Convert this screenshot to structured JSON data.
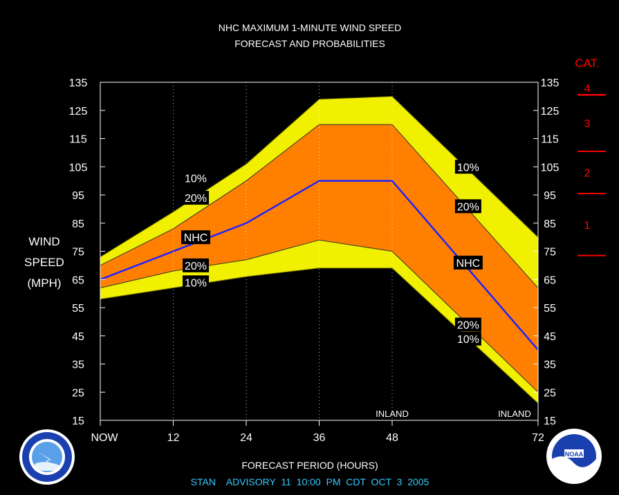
{
  "title_line1": "NHC MAXIMUM 1-MINUTE WIND SPEED",
  "title_line2": "FORECAST AND PROBABILITIES",
  "ylabel_lines": [
    "WIND",
    "SPEED",
    "(MPH)"
  ],
  "xlabel": "FORECAST PERIOD (HOURS)",
  "advisory": "STAN    ADVISORY  11  10:00  PM  CDT  OCT  3  2005",
  "category_header": "CAT.",
  "colors": {
    "outer_band": "#f0f000",
    "inner_band": "#ff8000",
    "forecast_line": "#2020ff",
    "category_text": "#ff0000",
    "advisory_text": "#33ccff",
    "background": "#000000"
  },
  "chart_data": {
    "type": "area",
    "title": "NHC MAXIMUM 1-MINUTE WIND SPEED FORECAST AND PROBABILITIES",
    "xlabel": "FORECAST PERIOD (HOURS)",
    "ylabel": "WIND SPEED (MPH)",
    "xlim": [
      0,
      72
    ],
    "ylim": [
      15,
      135
    ],
    "x_ticks": [
      {
        "value": 0,
        "label": "NOW"
      },
      {
        "value": 12,
        "label": "12"
      },
      {
        "value": 24,
        "label": "24"
      },
      {
        "value": 36,
        "label": "36"
      },
      {
        "value": 48,
        "label": "48"
      },
      {
        "value": 72,
        "label": "72"
      }
    ],
    "y_ticks": [
      15,
      25,
      35,
      45,
      55,
      65,
      75,
      85,
      95,
      105,
      115,
      125,
      135
    ],
    "x": [
      0,
      12,
      24,
      36,
      48,
      72
    ],
    "series": [
      {
        "name": "10% upper",
        "values": [
          73,
          89,
          106,
          129,
          130,
          80
        ]
      },
      {
        "name": "20% upper",
        "values": [
          70,
          83,
          100,
          120,
          120,
          62
        ]
      },
      {
        "name": "NHC",
        "values": [
          65,
          75,
          85,
          100,
          100,
          40
        ]
      },
      {
        "name": "20% lower",
        "values": [
          62,
          68,
          72,
          79,
          75,
          25
        ]
      },
      {
        "name": "10% lower",
        "values": [
          58,
          62,
          66,
          69,
          69,
          21
        ]
      }
    ],
    "band_labels": [
      {
        "text": "10%",
        "x": 15.7,
        "y": 101
      },
      {
        "text": "20%",
        "x": 15.7,
        "y": 94
      },
      {
        "text": "NHC",
        "x": 15.7,
        "y": 80
      },
      {
        "text": "20%",
        "x": 15.7,
        "y": 70
      },
      {
        "text": "10%",
        "x": 15.7,
        "y": 64
      },
      {
        "text": "10%",
        "x": 60.5,
        "y": 105
      },
      {
        "text": "20%",
        "x": 60.5,
        "y": 91
      },
      {
        "text": "NHC",
        "x": 60.5,
        "y": 71
      },
      {
        "text": "20%",
        "x": 60.5,
        "y": 49
      },
      {
        "text": "10%",
        "x": 60.5,
        "y": 44
      }
    ],
    "annotations": [
      {
        "text": "INLAND",
        "x": 48,
        "y": 16.5
      },
      {
        "text": "INLAND",
        "x": 72,
        "y": 16.5
      }
    ],
    "categories": [
      {
        "label": "1",
        "low": 74,
        "high": 95
      },
      {
        "label": "2",
        "low": 96,
        "high": 110
      },
      {
        "label": "3",
        "low": 111,
        "high": 130
      },
      {
        "label": "4",
        "low": 131,
        "high": 155
      }
    ]
  }
}
